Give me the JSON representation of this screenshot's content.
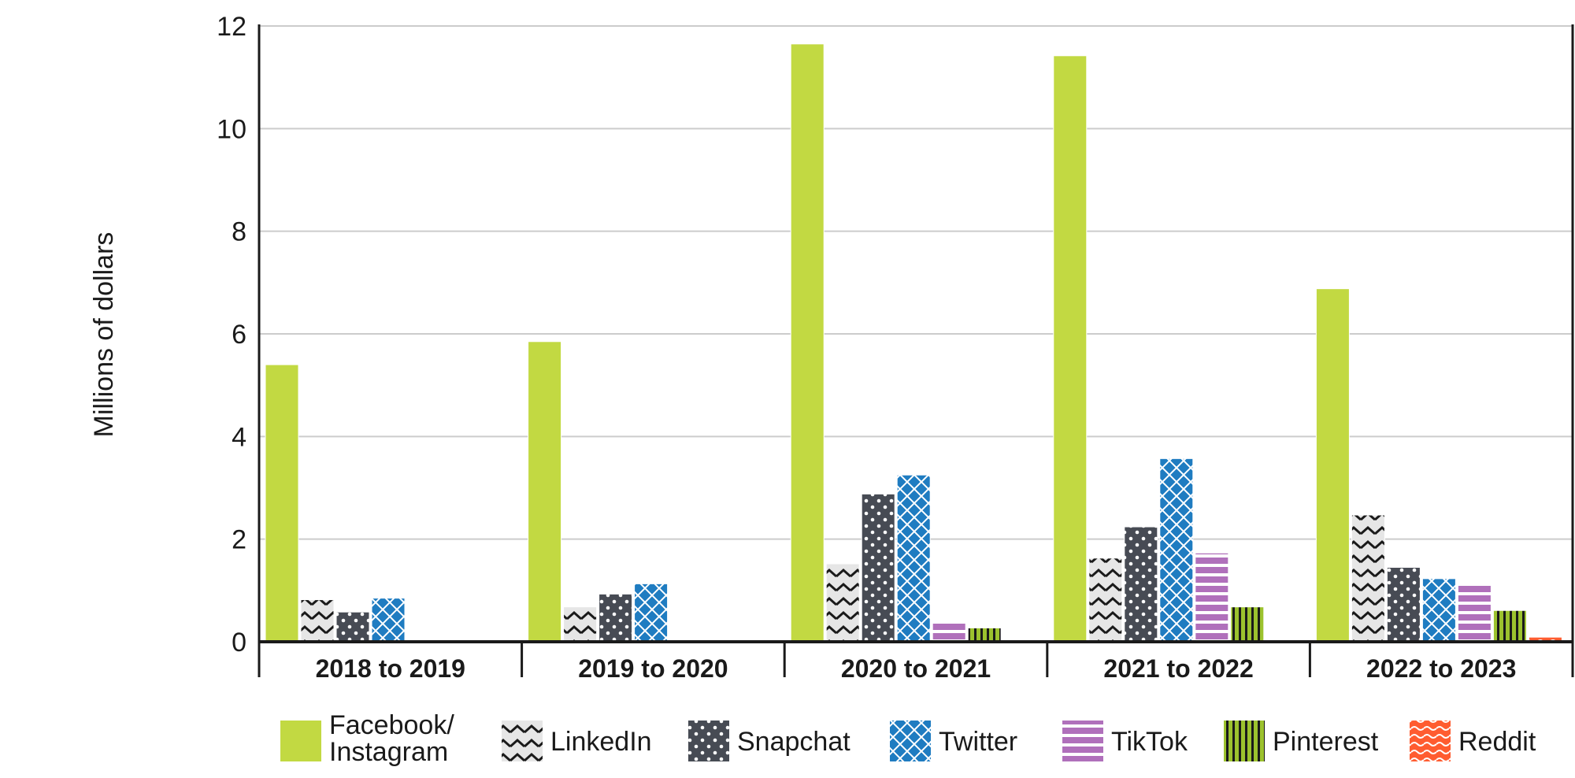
{
  "chart_data": {
    "type": "bar",
    "ylabel": "Millions of dollars",
    "ylim": [
      0,
      12
    ],
    "yticks": [
      "0",
      "2",
      "4",
      "6",
      "8",
      "10",
      "12"
    ],
    "grid": true,
    "legend_position": "bottom",
    "categories": [
      "2018 to 2019",
      "2019 to 2020",
      "2020 to 2021",
      "2021 to 2022",
      "2022 to 2023"
    ],
    "series": [
      {
        "name": "Facebook/ Instagram",
        "legend_lines": [
          "Facebook/",
          "Instagram"
        ],
        "color": "#c2d942",
        "pattern": "solid",
        "values": [
          5.4,
          5.85,
          11.65,
          11.42,
          6.88
        ]
      },
      {
        "name": "LinkedIn",
        "legend_lines": [
          "LinkedIn"
        ],
        "color": "#e6e6e6",
        "pattern": "zigzag",
        "values": [
          0.82,
          0.68,
          1.52,
          1.63,
          2.47
        ]
      },
      {
        "name": "Snapchat",
        "legend_lines": [
          "Snapchat"
        ],
        "color": "#474b54",
        "pattern": "dots",
        "values": [
          0.58,
          0.93,
          2.88,
          2.24,
          1.45
        ]
      },
      {
        "name": "Twitter",
        "legend_lines": [
          "Twitter"
        ],
        "color": "#1f7cc1",
        "pattern": "crosshatch",
        "values": [
          0.85,
          1.13,
          3.25,
          3.57,
          1.23
        ]
      },
      {
        "name": "TikTok",
        "legend_lines": [
          "TikTok"
        ],
        "color": "#b070bb",
        "pattern": "hstripes",
        "values": [
          0,
          0,
          0.38,
          1.73,
          1.13
        ]
      },
      {
        "name": "Pinterest",
        "legend_lines": [
          "Pinterest"
        ],
        "color": "#9cc22e",
        "pattern": "vstripes",
        "values": [
          0,
          0,
          0.27,
          0.68,
          0.61
        ]
      },
      {
        "name": "Reddit",
        "legend_lines": [
          "Reddit"
        ],
        "color": "#ff5c30",
        "pattern": "waves",
        "values": [
          0,
          0,
          0,
          0,
          0.09
        ]
      }
    ]
  }
}
